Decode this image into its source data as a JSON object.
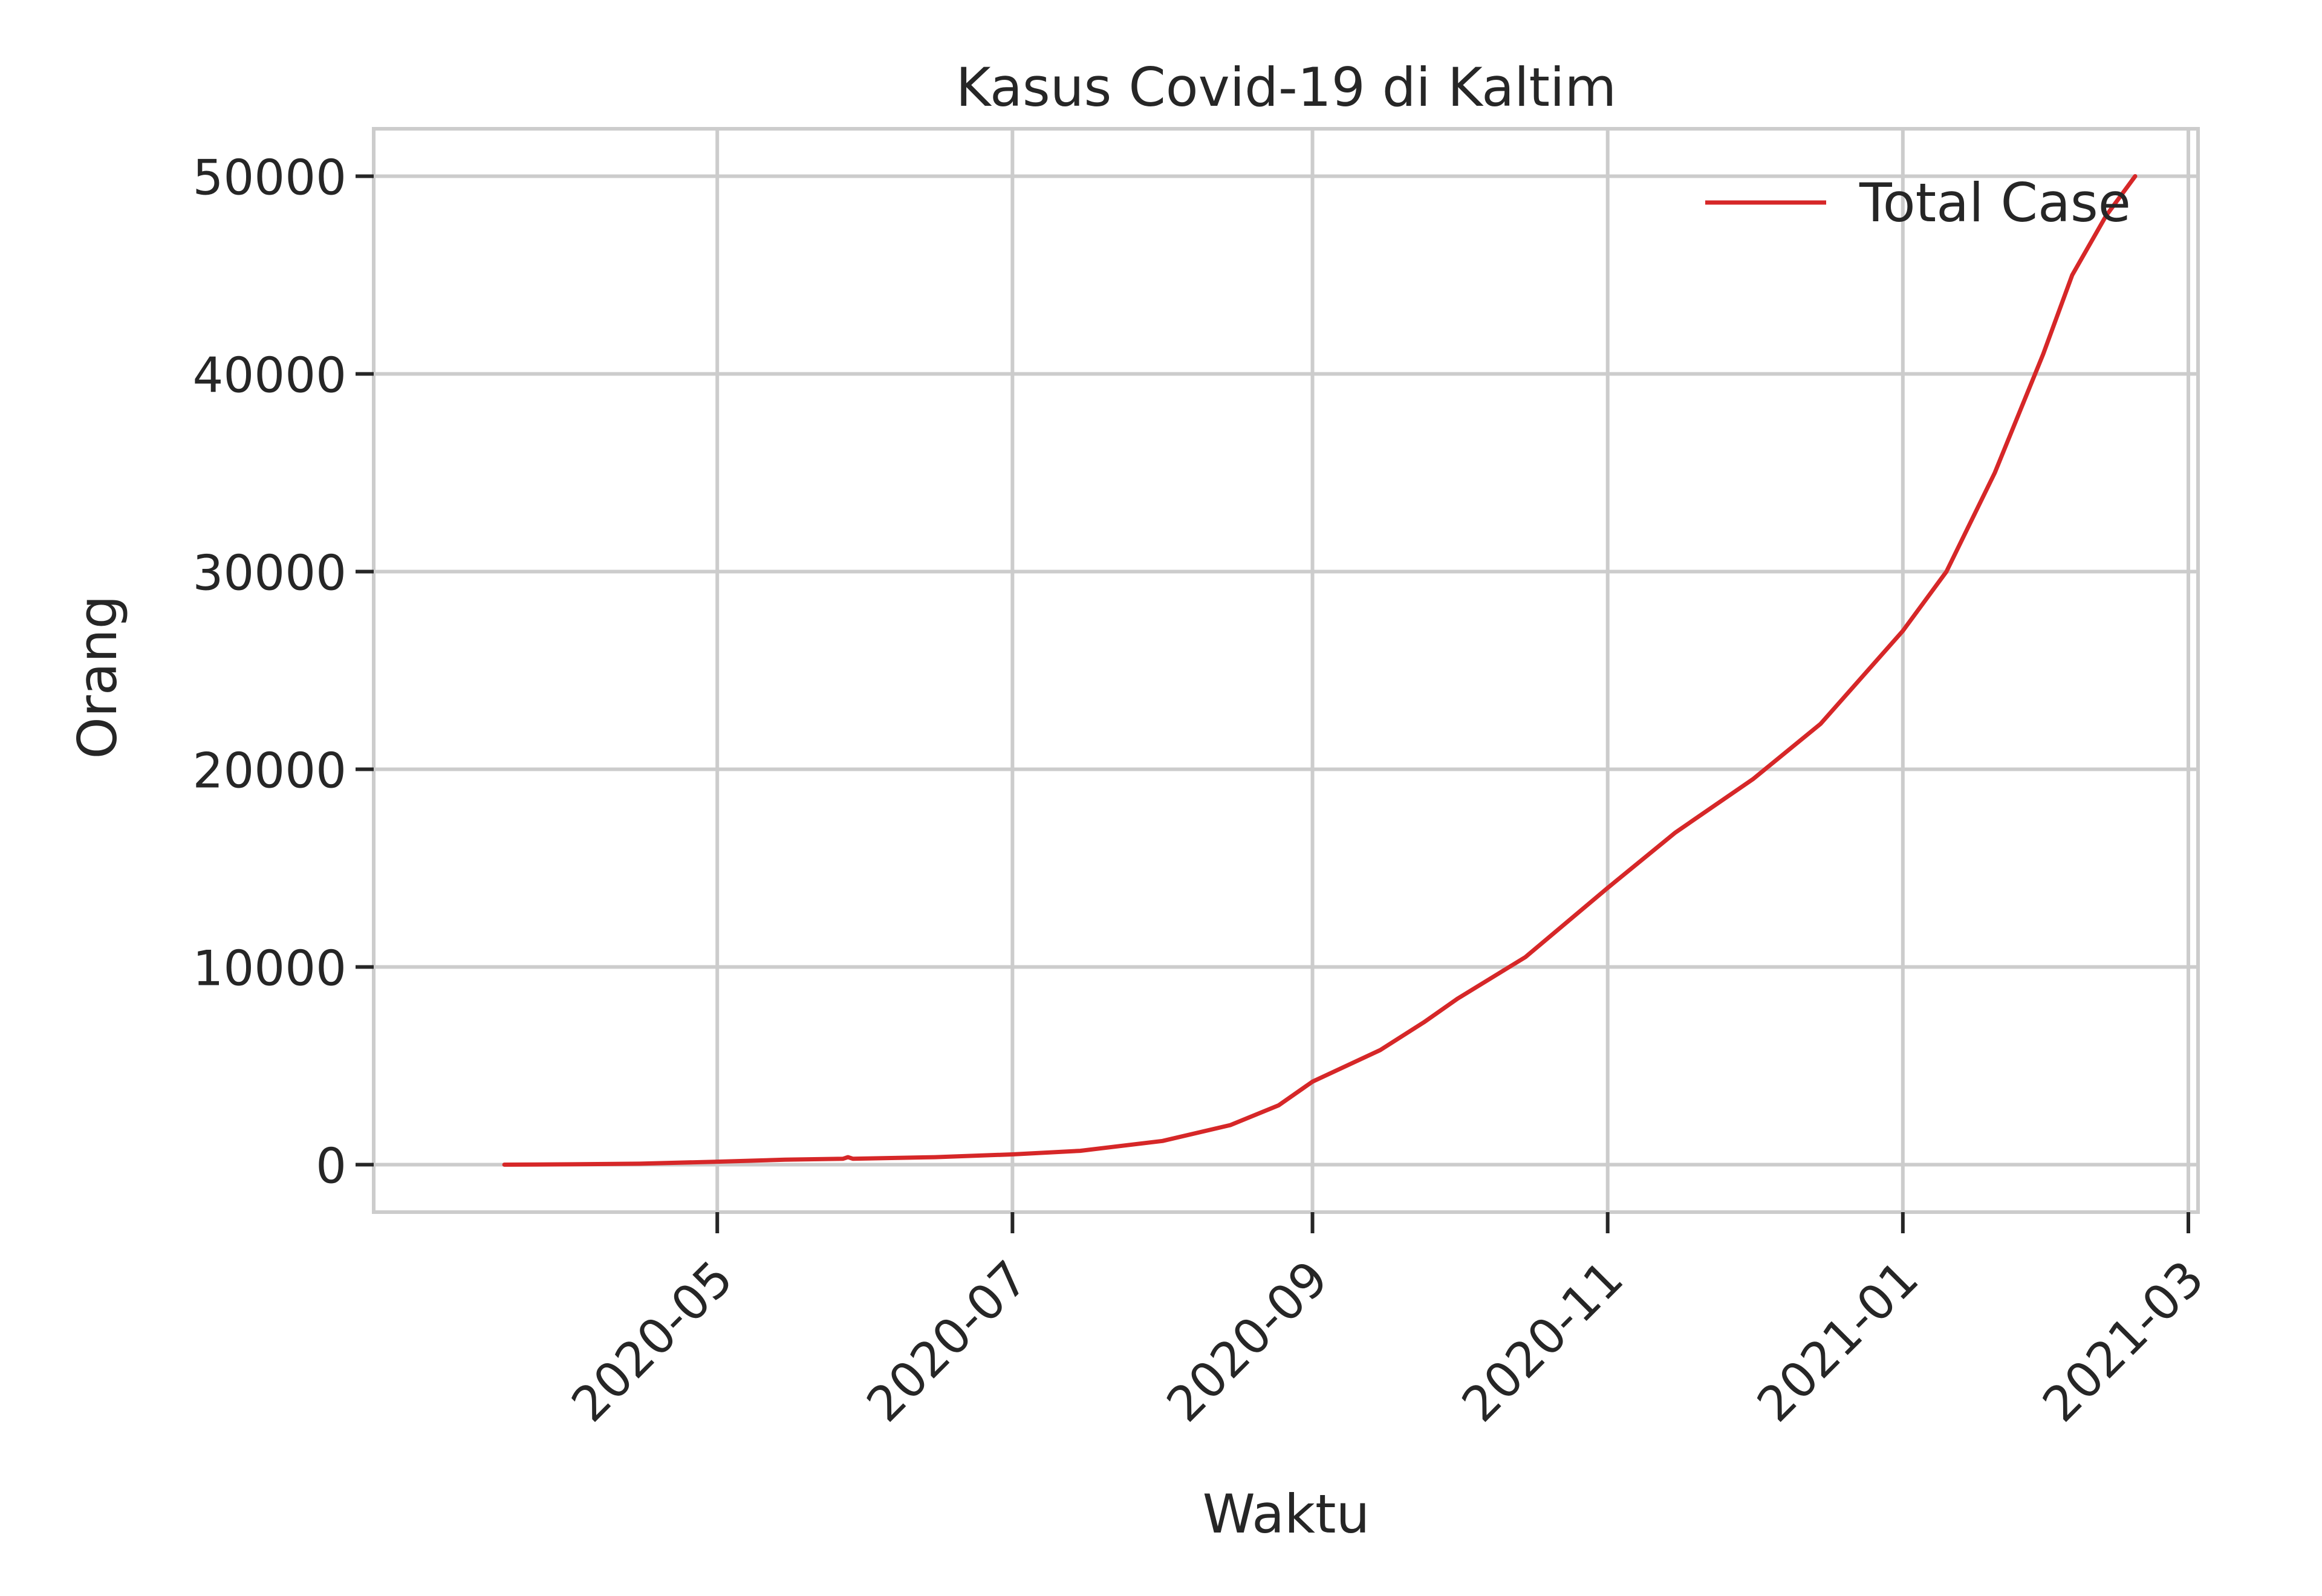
{
  "chart_data": {
    "type": "line",
    "title": "Kasus Covid-19 di Kaltim",
    "xlabel": "Waktu",
    "ylabel": "Orang",
    "grid": true,
    "legend_position": "top-right",
    "xlim": [
      "2020-02-20",
      "2021-03-03"
    ],
    "ylim": [
      -2400,
      52400
    ],
    "x_ticks": [
      "2020-05",
      "2020-07",
      "2020-09",
      "2020-11",
      "2021-01",
      "2021-03"
    ],
    "x_tick_dates": [
      "2020-05-01",
      "2020-07-01",
      "2020-09-01",
      "2020-11-01",
      "2021-01-01",
      "2021-03-01"
    ],
    "y_ticks": [
      0,
      10000,
      20000,
      30000,
      40000,
      50000
    ],
    "y_tick_labels": [
      "0",
      "10000",
      "20000",
      "30000",
      "40000",
      "50000"
    ],
    "series": [
      {
        "name": "Total Case",
        "color": "#d62728",
        "points": [
          [
            "2020-03-18",
            0
          ],
          [
            "2020-04-01",
            20
          ],
          [
            "2020-04-15",
            50
          ],
          [
            "2020-05-01",
            150
          ],
          [
            "2020-05-15",
            250
          ],
          [
            "2020-05-27",
            300
          ],
          [
            "2020-05-28",
            380
          ],
          [
            "2020-05-29",
            300
          ],
          [
            "2020-06-15",
            380
          ],
          [
            "2020-07-01",
            520
          ],
          [
            "2020-07-15",
            700
          ],
          [
            "2020-08-01",
            1200
          ],
          [
            "2020-08-15",
            2000
          ],
          [
            "2020-08-25",
            3000
          ],
          [
            "2020-09-01",
            4200
          ],
          [
            "2020-09-15",
            5800
          ],
          [
            "2020-09-24",
            7200
          ],
          [
            "2020-10-01",
            8400
          ],
          [
            "2020-10-15",
            10500
          ],
          [
            "2020-11-01",
            14000
          ],
          [
            "2020-11-15",
            16800
          ],
          [
            "2020-12-01",
            19500
          ],
          [
            "2020-12-15",
            22300
          ],
          [
            "2021-01-01",
            27000
          ],
          [
            "2021-01-10",
            30000
          ],
          [
            "2021-01-20",
            35000
          ],
          [
            "2021-01-30",
            41000
          ],
          [
            "2021-02-05",
            45000
          ],
          [
            "2021-02-12",
            48000
          ],
          [
            "2021-02-18",
            50000
          ]
        ]
      }
    ]
  }
}
